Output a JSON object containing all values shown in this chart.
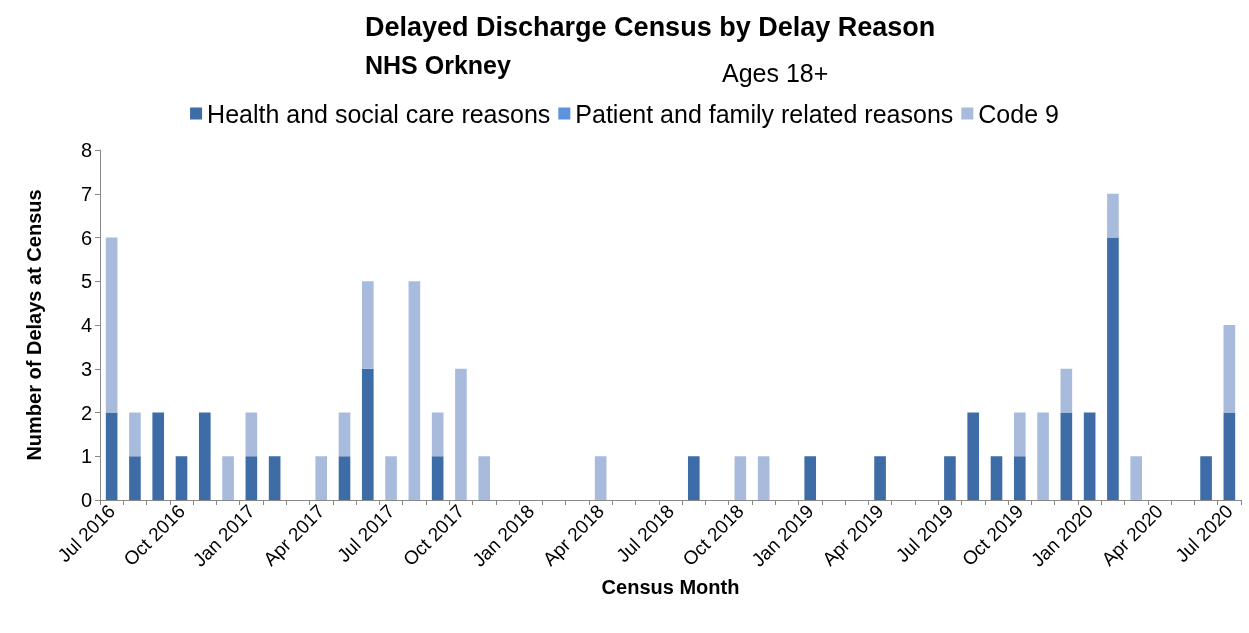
{
  "chart_data": {
    "type": "bar",
    "title": "Delayed Discharge Census by Delay Reason",
    "subtitle": "NHS Orkney",
    "annotations": [
      "Ages 18+"
    ],
    "xlabel": "Census Month",
    "ylabel": "Number of Delays at Census",
    "categories": [
      "Jul 2016",
      null,
      null,
      "Oct 2016",
      null,
      null,
      "Jan 2017",
      null,
      null,
      "Apr 2017",
      null,
      null,
      "Jul 2017",
      null,
      null,
      "Oct 2017",
      null,
      null,
      "Jan 2018",
      null,
      null,
      "Apr 2018",
      null,
      null,
      "Jul 2018",
      null,
      null,
      "Oct 2018",
      null,
      null,
      "Jan 2019",
      null,
      null,
      "Apr 2019",
      null,
      null,
      "Jul 2019",
      null,
      null,
      "Oct 2019",
      null,
      null,
      "Jan 2020",
      null,
      null,
      "Apr 2020",
      null,
      null,
      "Jul 2020"
    ],
    "series": [
      {
        "name": "Health and social care reasons",
        "color": "#3d6ca6",
        "values": [
          2,
          1,
          2,
          1,
          2,
          0,
          1,
          1,
          0,
          0,
          1,
          3,
          0,
          0,
          1,
          0,
          0,
          0,
          0,
          0,
          0,
          0,
          0,
          0,
          0,
          1,
          0,
          0,
          0,
          0,
          1,
          0,
          0,
          1,
          0,
          0,
          1,
          2,
          1,
          1,
          0,
          2,
          2,
          6,
          0,
          0,
          0,
          1,
          2
        ]
      },
      {
        "name": "Patient and family related reasons",
        "color": "#5b93dc",
        "values": [
          0,
          0,
          0,
          0,
          0,
          0,
          0,
          0,
          0,
          0,
          0,
          0,
          0,
          0,
          0,
          0,
          0,
          0,
          0,
          0,
          0,
          0,
          0,
          0,
          0,
          0,
          0,
          0,
          0,
          0,
          0,
          0,
          0,
          0,
          0,
          0,
          0,
          0,
          0,
          0,
          0,
          0,
          0,
          0,
          0,
          0,
          0,
          0,
          0
        ]
      },
      {
        "name": "Code 9",
        "color": "#a8bbdc",
        "values": [
          4,
          1,
          0,
          0,
          0,
          1,
          1,
          0,
          0,
          1,
          1,
          2,
          1,
          5,
          1,
          3,
          1,
          0,
          0,
          0,
          0,
          1,
          0,
          0,
          0,
          0,
          0,
          1,
          1,
          0,
          0,
          0,
          0,
          0,
          0,
          0,
          0,
          0,
          0,
          1,
          2,
          1,
          0,
          1,
          1,
          0,
          0,
          0,
          2
        ]
      }
    ],
    "stacked": true,
    "ylim": [
      0,
      8
    ],
    "yticks": [
      0,
      1,
      2,
      3,
      4,
      5,
      6,
      7,
      8
    ],
    "grid": false,
    "legend": "top"
  }
}
